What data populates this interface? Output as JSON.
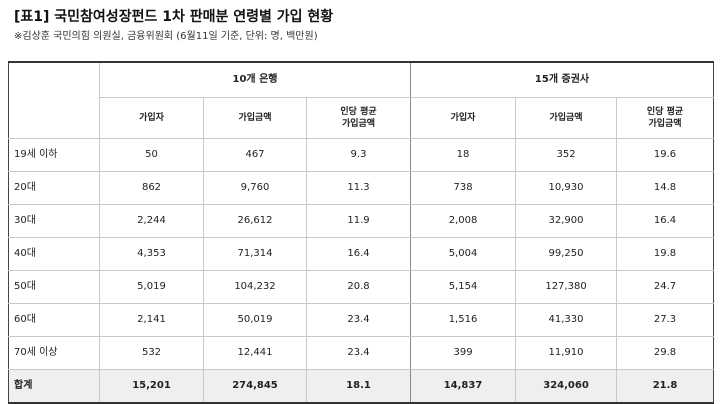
{
  "title": "[표1] 국민참여성장펀드 1차 판매분 연령별 가입 현황",
  "note": "※김상훈 국민의힘 의원실, 금융위원회 (6월11일 기준, 단위: 명, 백만원)",
  "groups": {
    "banks": "10개 은행",
    "securities": "15개 증권사"
  },
  "columns": {
    "subscribers": "가입자",
    "amount": "가입금액",
    "avg_line1": "인당 평균",
    "avg_line2": "가입금액"
  },
  "rows": [
    {
      "label": "19세 이하",
      "b_sub": "50",
      "b_amt": "467",
      "b_avg": "9.3",
      "s_sub": "18",
      "s_amt": "352",
      "s_avg": "19.6"
    },
    {
      "label": "20대",
      "b_sub": "862",
      "b_amt": "9,760",
      "b_avg": "11.3",
      "s_sub": "738",
      "s_amt": "10,930",
      "s_avg": "14.8"
    },
    {
      "label": "30대",
      "b_sub": "2,244",
      "b_amt": "26,612",
      "b_avg": "11.9",
      "s_sub": "2,008",
      "s_amt": "32,900",
      "s_avg": "16.4"
    },
    {
      "label": "40대",
      "b_sub": "4,353",
      "b_amt": "71,314",
      "b_avg": "16.4",
      "s_sub": "5,004",
      "s_amt": "99,250",
      "s_avg": "19.8"
    },
    {
      "label": "50대",
      "b_sub": "5,019",
      "b_amt": "104,232",
      "b_avg": "20.8",
      "s_sub": "5,154",
      "s_amt": "127,380",
      "s_avg": "24.7"
    },
    {
      "label": "60대",
      "b_sub": "2,141",
      "b_amt": "50,019",
      "b_avg": "23.4",
      "s_sub": "1,516",
      "s_amt": "41,330",
      "s_avg": "27.3"
    },
    {
      "label": "70세 이상",
      "b_sub": "532",
      "b_amt": "12,441",
      "b_avg": "23.4",
      "s_sub": "399",
      "s_amt": "11,910",
      "s_avg": "29.8"
    }
  ],
  "total": {
    "label": "합계",
    "b_sub": "15,201",
    "b_amt": "274,845",
    "b_avg": "18.1",
    "s_sub": "14,837",
    "s_amt": "324,060",
    "s_avg": "21.8"
  }
}
